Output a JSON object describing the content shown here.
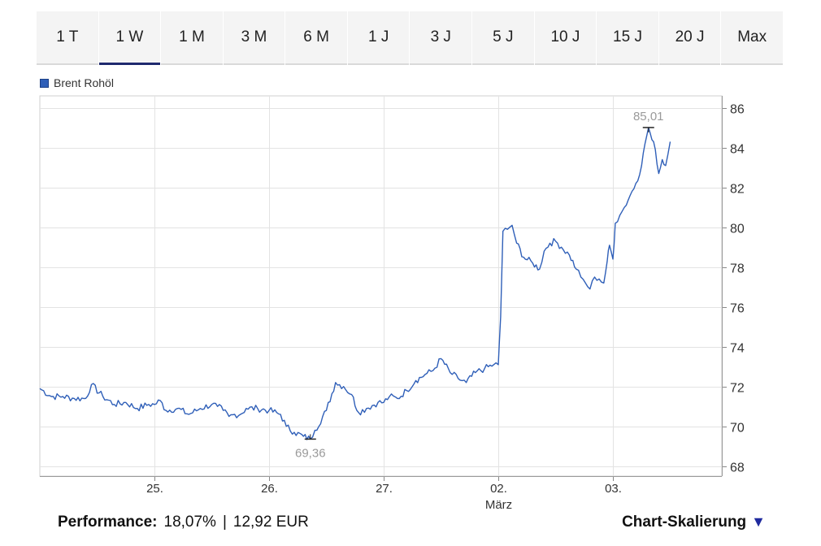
{
  "tabs": [
    {
      "label": "1 T",
      "active": false
    },
    {
      "label": "1 W",
      "active": true
    },
    {
      "label": "1 M",
      "active": false
    },
    {
      "label": "3 M",
      "active": false
    },
    {
      "label": "6 M",
      "active": false
    },
    {
      "label": "1 J",
      "active": false
    },
    {
      "label": "3 J",
      "active": false
    },
    {
      "label": "5 J",
      "active": false
    },
    {
      "label": "10 J",
      "active": false
    },
    {
      "label": "15 J",
      "active": false
    },
    {
      "label": "20 J",
      "active": false
    },
    {
      "label": "Max",
      "active": false
    }
  ],
  "chart_data": {
    "type": "line",
    "title": "",
    "xlabel": "",
    "ylabel": "",
    "legend_position": "top-left",
    "grid": true,
    "series": [
      {
        "name": "Brent Rohöl",
        "color": "#2f5fb8",
        "points": [
          [
            -1.0,
            71.9
          ],
          [
            -0.9,
            71.5
          ],
          [
            -0.8,
            71.5
          ],
          [
            -0.7,
            71.4
          ],
          [
            -0.6,
            71.4
          ],
          [
            -0.55,
            72.1
          ],
          [
            -0.45,
            71.5
          ],
          [
            -0.35,
            71.1
          ],
          [
            -0.25,
            71.2
          ],
          [
            -0.15,
            70.9
          ],
          [
            -0.05,
            71.1
          ],
          [
            0.0,
            71.1
          ],
          [
            0.05,
            71.3
          ],
          [
            0.1,
            70.8
          ],
          [
            0.2,
            70.9
          ],
          [
            0.3,
            70.6
          ],
          [
            0.4,
            70.9
          ],
          [
            0.5,
            71.1
          ],
          [
            0.55,
            71.0
          ],
          [
            0.6,
            70.8
          ],
          [
            0.65,
            70.5
          ],
          [
            0.7,
            70.6
          ],
          [
            0.75,
            70.6
          ],
          [
            0.8,
            70.9
          ],
          [
            0.9,
            70.9
          ],
          [
            1.0,
            70.8
          ],
          [
            1.1,
            70.6
          ],
          [
            1.15,
            70.0
          ],
          [
            1.22,
            69.7
          ],
          [
            1.3,
            69.5
          ],
          [
            1.36,
            69.36
          ],
          [
            1.4,
            69.8
          ],
          [
            1.5,
            70.8
          ],
          [
            1.58,
            72.2
          ],
          [
            1.65,
            72.0
          ],
          [
            1.72,
            71.6
          ],
          [
            1.78,
            70.7
          ],
          [
            1.85,
            70.9
          ],
          [
            1.95,
            71.2
          ],
          [
            2.0,
            71.2
          ],
          [
            2.05,
            71.5
          ],
          [
            2.12,
            71.4
          ],
          [
            2.2,
            71.8
          ],
          [
            2.28,
            72.3
          ],
          [
            2.36,
            72.6
          ],
          [
            2.43,
            72.8
          ],
          [
            2.5,
            73.4
          ],
          [
            2.58,
            72.7
          ],
          [
            2.65,
            72.4
          ],
          [
            2.72,
            72.2
          ],
          [
            2.8,
            72.7
          ],
          [
            2.88,
            72.9
          ],
          [
            2.96,
            73.1
          ],
          [
            3.0,
            73.1
          ],
          [
            3.02,
            75.5
          ],
          [
            3.04,
            79.8
          ],
          [
            3.08,
            79.9
          ],
          [
            3.12,
            80.1
          ],
          [
            3.16,
            79.2
          ],
          [
            3.22,
            78.5
          ],
          [
            3.3,
            78.2
          ],
          [
            3.36,
            77.9
          ],
          [
            3.4,
            78.8
          ],
          [
            3.45,
            79.2
          ],
          [
            3.5,
            79.3
          ],
          [
            3.55,
            79.0
          ],
          [
            3.62,
            78.6
          ],
          [
            3.68,
            77.9
          ],
          [
            3.72,
            77.5
          ],
          [
            3.76,
            77.2
          ],
          [
            3.8,
            76.9
          ],
          [
            3.84,
            77.5
          ],
          [
            3.88,
            77.4
          ],
          [
            3.92,
            77.2
          ],
          [
            3.95,
            78.3
          ],
          [
            3.97,
            79.1
          ],
          [
            4.0,
            78.4
          ],
          [
            4.02,
            80.2
          ],
          [
            4.06,
            80.6
          ],
          [
            4.1,
            81.0
          ],
          [
            4.15,
            81.6
          ],
          [
            4.2,
            82.2
          ],
          [
            4.25,
            83.1
          ],
          [
            4.28,
            84.2
          ],
          [
            4.31,
            85.01
          ],
          [
            4.34,
            84.4
          ],
          [
            4.37,
            83.9
          ],
          [
            4.4,
            82.7
          ],
          [
            4.43,
            83.4
          ],
          [
            4.46,
            83.1
          ],
          [
            4.5,
            84.3
          ]
        ]
      }
    ],
    "x_ticks": [
      {
        "value": 0,
        "label": "25."
      },
      {
        "value": 1,
        "label": "26."
      },
      {
        "value": 2,
        "label": "27."
      },
      {
        "value": 3,
        "label": "02.",
        "sublabel": "März"
      },
      {
        "value": 4,
        "label": "03."
      }
    ],
    "xlim": [
      -1.0,
      4.95
    ],
    "y_ticks": [
      68,
      70,
      72,
      74,
      76,
      78,
      80,
      82,
      84,
      86
    ],
    "ylim": [
      67.5,
      86.6
    ],
    "annotations": [
      {
        "x": 1.36,
        "y": 69.36,
        "label": "69,36",
        "kind": "min"
      },
      {
        "x": 4.31,
        "y": 85.01,
        "label": "85,01",
        "kind": "max"
      }
    ]
  },
  "footer": {
    "performance_label": "Performance:",
    "performance_pct": "18,07%",
    "separator": "|",
    "performance_abs": "12,92 EUR",
    "scaling_label": "Chart-Skalierung",
    "scaling_arrow": "▼"
  }
}
